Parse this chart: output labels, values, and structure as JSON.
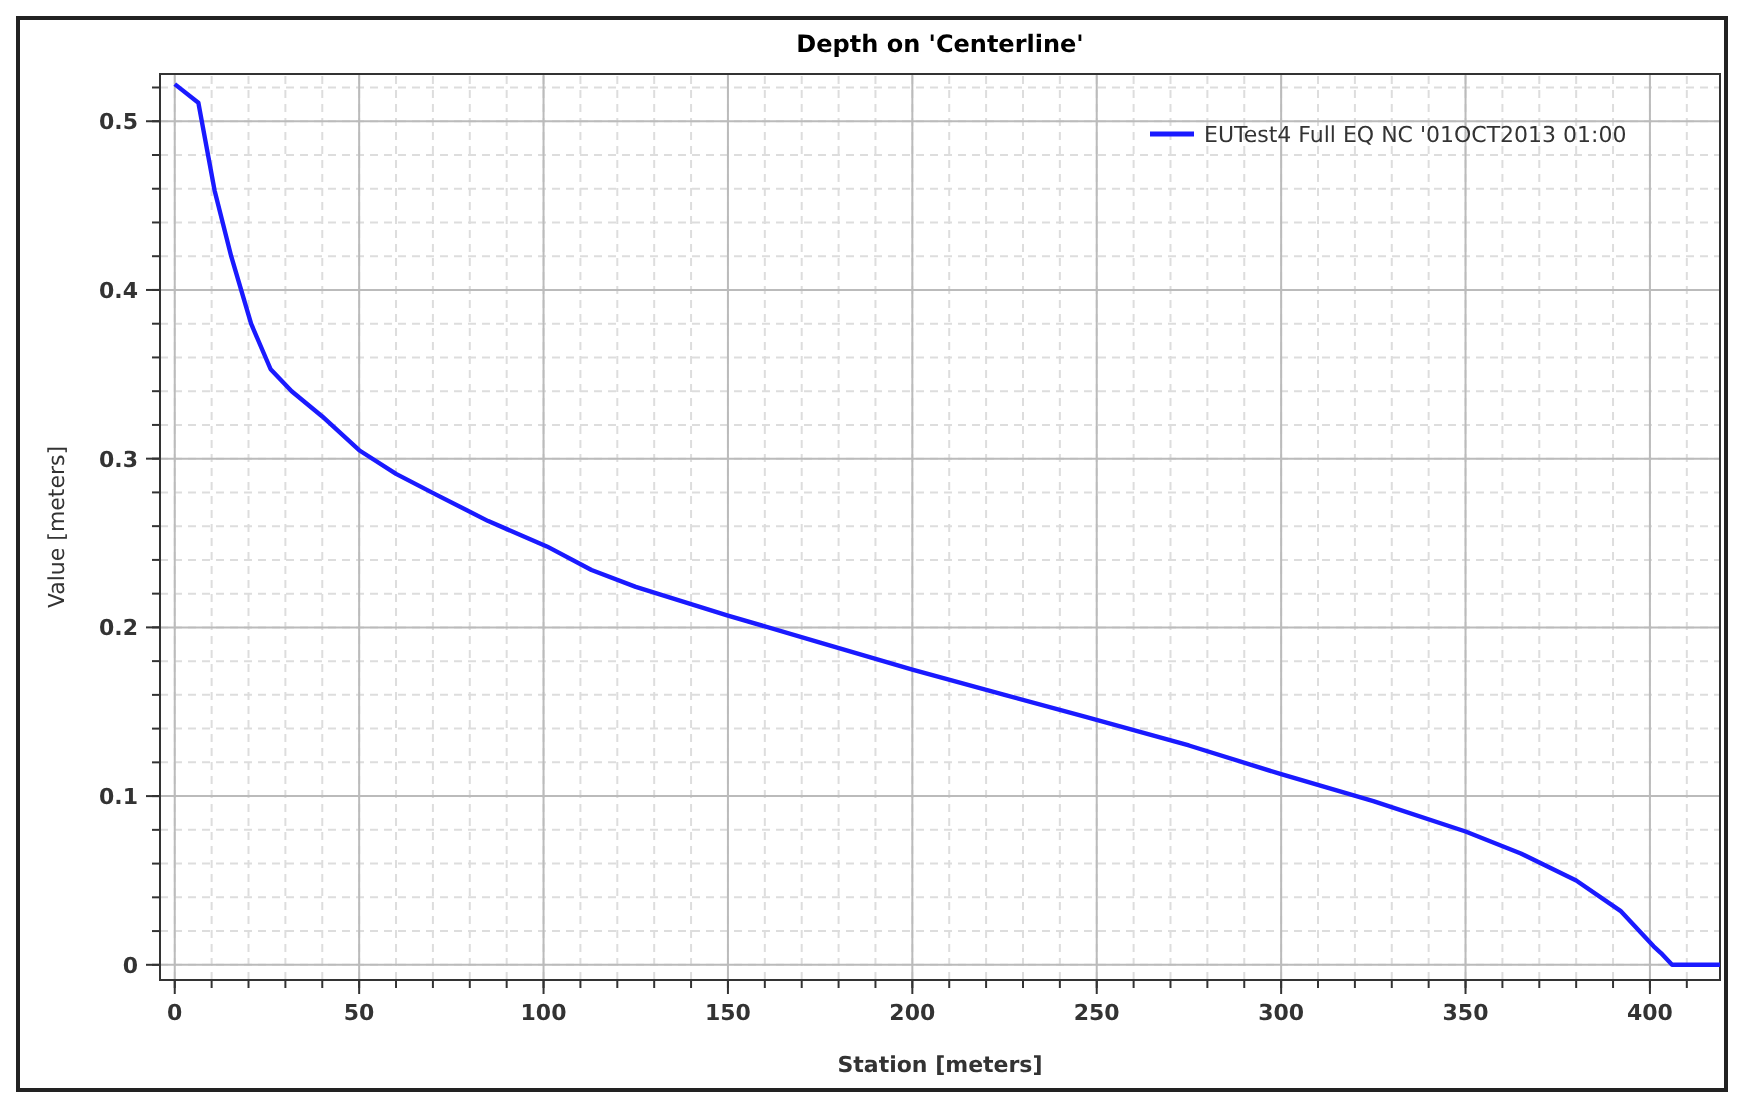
{
  "chart_data": {
    "type": "line",
    "title": "Depth on 'Centerline'",
    "xlabel": "Station [meters]",
    "ylabel": "Value [meters]",
    "xlim": [
      -4,
      419
    ],
    "ylim": [
      -0.009,
      0.528
    ],
    "xticks": [
      0,
      50,
      100,
      150,
      200,
      250,
      300,
      350,
      400
    ],
    "yticks": [
      0,
      0.1,
      0.2,
      0.3,
      0.4,
      0.5
    ],
    "grid": true,
    "legend": "top right",
    "marker": "none",
    "line_style": "solid",
    "series": [
      {
        "name": "EUTest4 Full EQ NC '01OCT2013 01:00",
        "color": "#1a1aff",
        "x": [
          0,
          6.4,
          10.8,
          15.3,
          20.7,
          26,
          31.7,
          40,
          50,
          60,
          70.6,
          85,
          100.9,
          113,
          125,
          150,
          175,
          200,
          225,
          247,
          275,
          300,
          325,
          350,
          365,
          380,
          392,
          401,
          403,
          406,
          419
        ],
        "values": [
          0.522,
          0.511,
          0.459,
          0.42,
          0.38,
          0.353,
          0.34,
          0.325,
          0.305,
          0.291,
          0.279,
          0.263,
          0.248,
          0.234,
          0.224,
          0.207,
          0.191,
          0.175,
          0.16,
          0.147,
          0.13,
          0.113,
          0.097,
          0.079,
          0.066,
          0.05,
          0.032,
          0.011,
          0.007,
          0,
          0
        ]
      }
    ]
  }
}
